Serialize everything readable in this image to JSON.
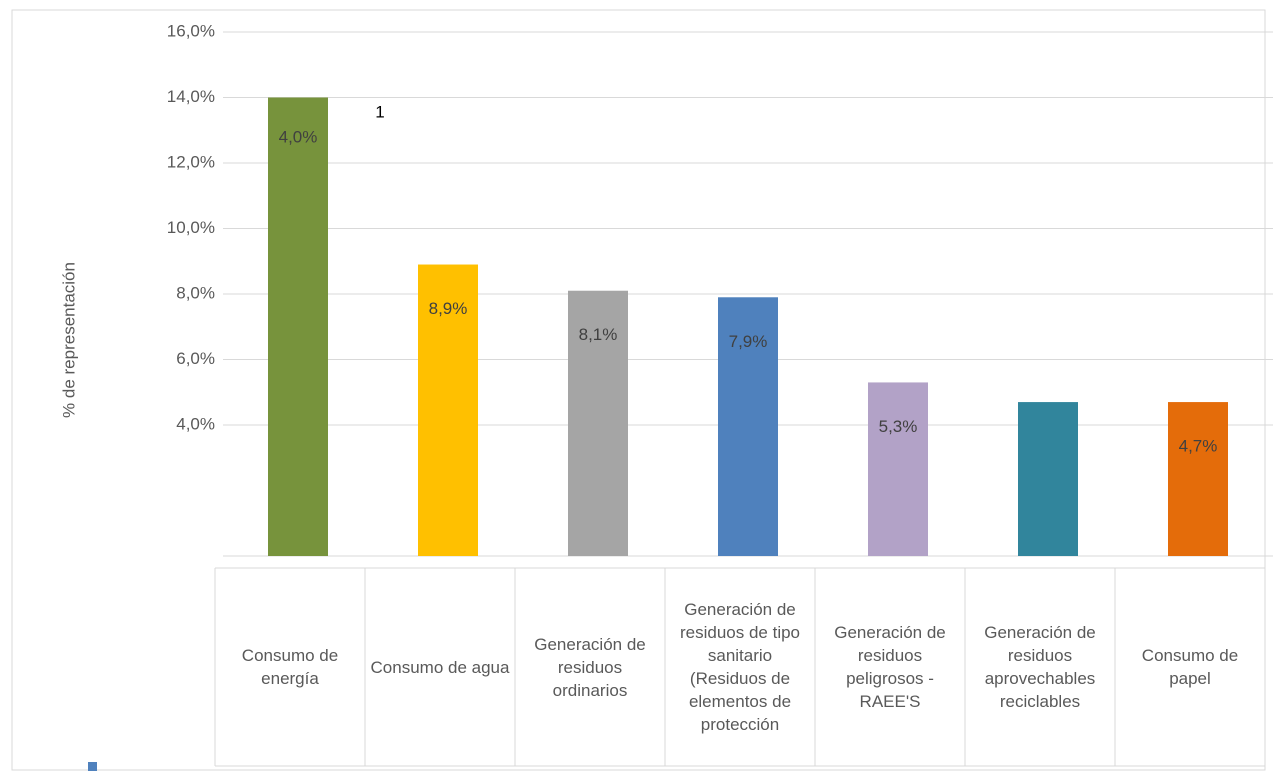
{
  "chart_data": {
    "type": "bar",
    "y_label": "% de representación",
    "categories": [
      "Consumo de energía",
      "Consumo de agua",
      "Generación de residuos ordinarios",
      "Generación de residuos de tipo sanitario (Residuos de elementos de protección",
      "Generación de residuos peligrosos - RAEE'S",
      "Generación de residuos aprovechables reciclables",
      "Consumo de papel"
    ],
    "values": [
      14.0,
      8.9,
      8.1,
      7.9,
      5.3,
      4.7,
      4.7
    ],
    "value_labels": [
      null,
      "8,9%",
      "8,1%",
      "7,9%",
      "5,3%",
      null,
      "4,7%"
    ],
    "colors": [
      "#77933c",
      "#ffc000",
      "#a5a5a5",
      "#4f81bd",
      "#b2a2c7",
      "#31859c",
      "#e46c0a"
    ],
    "annotations": [
      "1",
      "4,0%"
    ],
    "ylim": [
      0,
      16
    ],
    "yticks": [
      {
        "value": 16,
        "label": "16,0%"
      },
      {
        "value": 14,
        "label": "14,0%"
      },
      {
        "value": 12,
        "label": "12,0%"
      },
      {
        "value": 10,
        "label": "10,0%"
      },
      {
        "value": 8,
        "label": "8,0%"
      },
      {
        "value": 6,
        "label": "6,0%"
      },
      {
        "value": 4,
        "label": "4,0%"
      }
    ],
    "grid": true
  }
}
